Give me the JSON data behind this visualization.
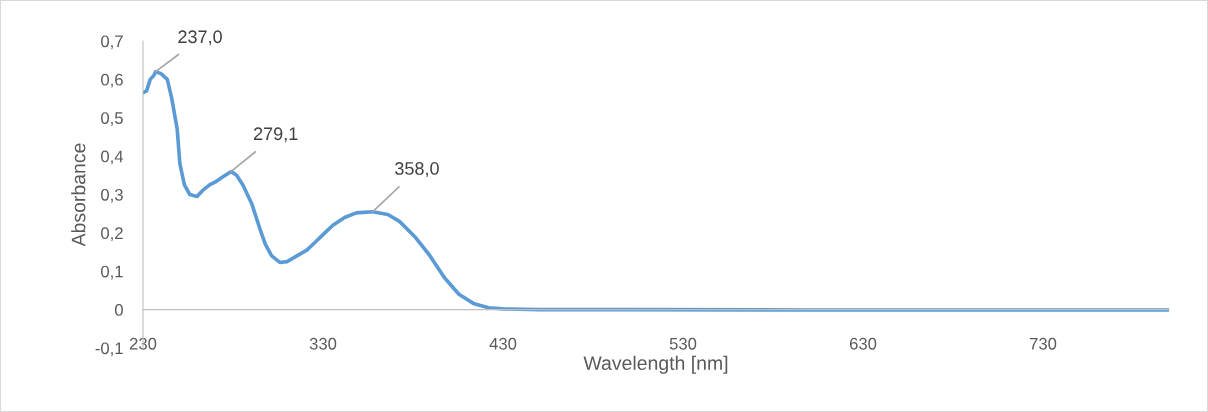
{
  "chart_data": {
    "type": "line",
    "xlabel": "Wavelength [nm]",
    "ylabel": "Absorbance",
    "xlim": [
      230,
      800
    ],
    "ylim": [
      -0.1,
      0.7
    ],
    "xticks": [
      230,
      330,
      430,
      530,
      630,
      730
    ],
    "yticks": [
      {
        "value": -0.1,
        "label": "-0,1"
      },
      {
        "value": 0,
        "label": "0"
      },
      {
        "value": 0.1,
        "label": "0,1"
      },
      {
        "value": 0.2,
        "label": "0,2"
      },
      {
        "value": 0.3,
        "label": "0,3"
      },
      {
        "value": 0.4,
        "label": "0,4"
      },
      {
        "value": 0.5,
        "label": "0,5"
      },
      {
        "value": 0.6,
        "label": "0,6"
      },
      {
        "value": 0.7,
        "label": "0,7"
      }
    ],
    "grid": false,
    "legend": false,
    "marker": "none",
    "line_style": "solid",
    "series": [
      {
        "color": "#5b9bd5",
        "x": [
          230,
          232,
          234,
          236,
          237,
          240,
          243.5,
          246,
          249,
          250.5,
          253,
          256,
          260,
          263,
          267,
          271,
          274,
          279,
          282,
          285.5,
          290.5,
          295,
          298,
          301.5,
          306,
          310,
          315.5,
          321,
          325.5,
          331,
          335.5,
          342,
          348.5,
          357.5,
          366,
          372.5,
          381,
          389,
          397.5,
          405.5,
          414,
          422,
          430,
          450,
          500,
          600,
          700,
          800
        ],
        "values": [
          0.565,
          0.57,
          0.6,
          0.61,
          0.62,
          0.615,
          0.6,
          0.55,
          0.47,
          0.38,
          0.325,
          0.3,
          0.295,
          0.31,
          0.325,
          0.335,
          0.345,
          0.36,
          0.35,
          0.325,
          0.275,
          0.21,
          0.17,
          0.14,
          0.123,
          0.125,
          0.14,
          0.155,
          0.175,
          0.2,
          0.22,
          0.24,
          0.252,
          0.255,
          0.248,
          0.23,
          0.19,
          0.143,
          0.083,
          0.04,
          0.015,
          0.005,
          0.002,
          0.0,
          0.0,
          -0.001,
          -0.001,
          -0.001
        ]
      }
    ],
    "annotations": [
      {
        "text": "237,0",
        "x": 237,
        "y": 0.62
      },
      {
        "text": "279,1",
        "x": 279,
        "y": 0.36
      },
      {
        "text": "358,0",
        "x": 357.5,
        "y": 0.255
      }
    ]
  }
}
